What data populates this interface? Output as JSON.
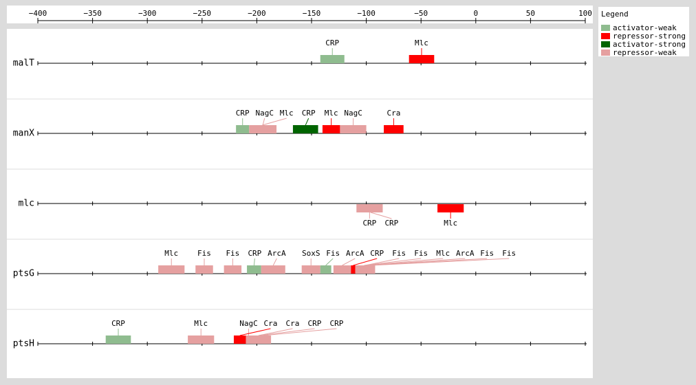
{
  "axis": {
    "xlim": [
      -400,
      100
    ],
    "xticks": [
      {
        "value": -400,
        "label": "−400"
      },
      {
        "value": -350,
        "label": "−350"
      },
      {
        "value": -300,
        "label": "−300"
      },
      {
        "value": -250,
        "label": "−250"
      },
      {
        "value": -200,
        "label": "−200"
      },
      {
        "value": -150,
        "label": "−150"
      },
      {
        "value": -100,
        "label": "−100"
      },
      {
        "value": -50,
        "label": "−50"
      },
      0,
      50,
      100
    ]
  },
  "legend": {
    "title": "Legend",
    "items": [
      {
        "name": "activator-weak",
        "color": "#8fbc8f"
      },
      {
        "name": "repressor-strong",
        "color": "#ff0000"
      },
      {
        "name": "activator-strong",
        "color": "#006400"
      },
      {
        "name": "repressor-weak",
        "color": "#e5a0a0"
      }
    ]
  },
  "genes": [
    {
      "name": "malT",
      "sites": [
        {
          "label": "CRP",
          "type": "activator-weak",
          "start": -142,
          "end": -120
        },
        {
          "label": "Mlc",
          "type": "repressor-strong",
          "start": -61,
          "end": -38
        }
      ]
    },
    {
      "name": "manX",
      "sites": [
        {
          "label": "CRP",
          "type": "activator-weak",
          "start": -219,
          "end": -207
        },
        {
          "label": "NagC",
          "type": "repressor-weak",
          "start": -207,
          "end": -182
        },
        {
          "label": "Mlc",
          "type": "repressor-weak",
          "start": -205,
          "end": -185
        },
        {
          "label": "CRP",
          "type": "activator-strong",
          "start": -167,
          "end": -144
        },
        {
          "label": "Mlc",
          "type": "repressor-strong",
          "start": -140,
          "end": -124
        },
        {
          "label": "NagC",
          "type": "repressor-weak",
          "start": -124,
          "end": -100
        },
        {
          "label": "Cra",
          "type": "repressor-strong",
          "start": -84,
          "end": -66
        }
      ]
    },
    {
      "name": "mlc",
      "position": "below",
      "sites": [
        {
          "label": "CRP",
          "type": "repressor-weak",
          "start": -109,
          "end": -85
        },
        {
          "label": "CRP",
          "type": "repressor-weak",
          "start": -105,
          "end": -87
        },
        {
          "label": "Mlc",
          "type": "repressor-strong",
          "start": -35,
          "end": -11
        }
      ]
    },
    {
      "name": "ptsG",
      "sites": [
        {
          "label": "Mlc",
          "type": "repressor-weak",
          "start": -290,
          "end": -266
        },
        {
          "label": "Fis",
          "type": "repressor-weak",
          "start": -256,
          "end": -240
        },
        {
          "label": "Fis",
          "type": "repressor-weak",
          "start": -230,
          "end": -214
        },
        {
          "label": "CRP",
          "type": "activator-weak",
          "start": -209,
          "end": -196
        },
        {
          "label": "ArcA",
          "type": "repressor-weak",
          "start": -196,
          "end": -174
        },
        {
          "label": "SoxS",
          "type": "repressor-weak",
          "start": -159,
          "end": -142
        },
        {
          "label": "Fis",
          "type": "activator-weak",
          "start": -142,
          "end": -132
        },
        {
          "label": "ArcA",
          "type": "repressor-weak",
          "start": -130,
          "end": -114
        },
        {
          "label": "CRP",
          "type": "repressor-strong",
          "start": -114,
          "end": -110
        },
        {
          "label": "Fis",
          "type": "repressor-weak",
          "start": -110,
          "end": -92
        },
        {
          "label": "Fis",
          "type": "repressor-weak",
          "start": -108,
          "end": -96
        },
        {
          "label": "Mlc",
          "type": "repressor-weak",
          "start": -106,
          "end": -94
        },
        {
          "label": "ArcA",
          "type": "repressor-weak",
          "start": -104,
          "end": -94
        },
        {
          "label": "Fis",
          "type": "repressor-weak",
          "start": -102,
          "end": -93
        },
        {
          "label": "Fis",
          "type": "repressor-weak",
          "start": -100,
          "end": -92
        }
      ]
    },
    {
      "name": "ptsH",
      "sites": [
        {
          "label": "CRP",
          "type": "activator-weak",
          "start": -338,
          "end": -315
        },
        {
          "label": "Mlc",
          "type": "repressor-weak",
          "start": -263,
          "end": -239
        },
        {
          "label": "NagC",
          "type": "repressor-weak",
          "start": -215,
          "end": -200
        },
        {
          "label": "Cra",
          "type": "repressor-strong",
          "start": -221,
          "end": -210
        },
        {
          "label": "Cra",
          "type": "repressor-weak",
          "start": -210,
          "end": -187
        },
        {
          "label": "CRP",
          "type": "repressor-weak",
          "start": -205,
          "end": -190
        },
        {
          "label": "CRP",
          "type": "repressor-weak",
          "start": -200,
          "end": -188
        }
      ]
    }
  ]
}
